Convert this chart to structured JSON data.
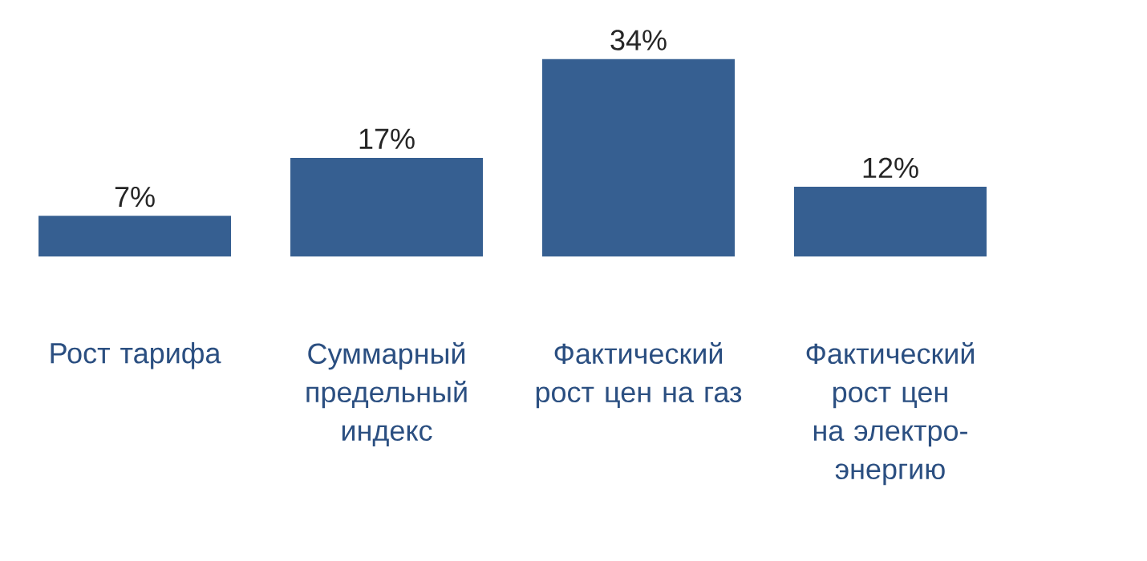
{
  "chart_data": {
    "type": "bar",
    "categories": [
      "Рост тарифа",
      "Суммарный предельный индекс",
      "Фактический рост цен на газ",
      "Фактический рост цен на электро-энергию"
    ],
    "values": [
      7,
      17,
      34,
      12
    ],
    "value_labels": [
      "7%",
      "17%",
      "34%",
      "12%"
    ],
    "color": "#365f91"
  }
}
